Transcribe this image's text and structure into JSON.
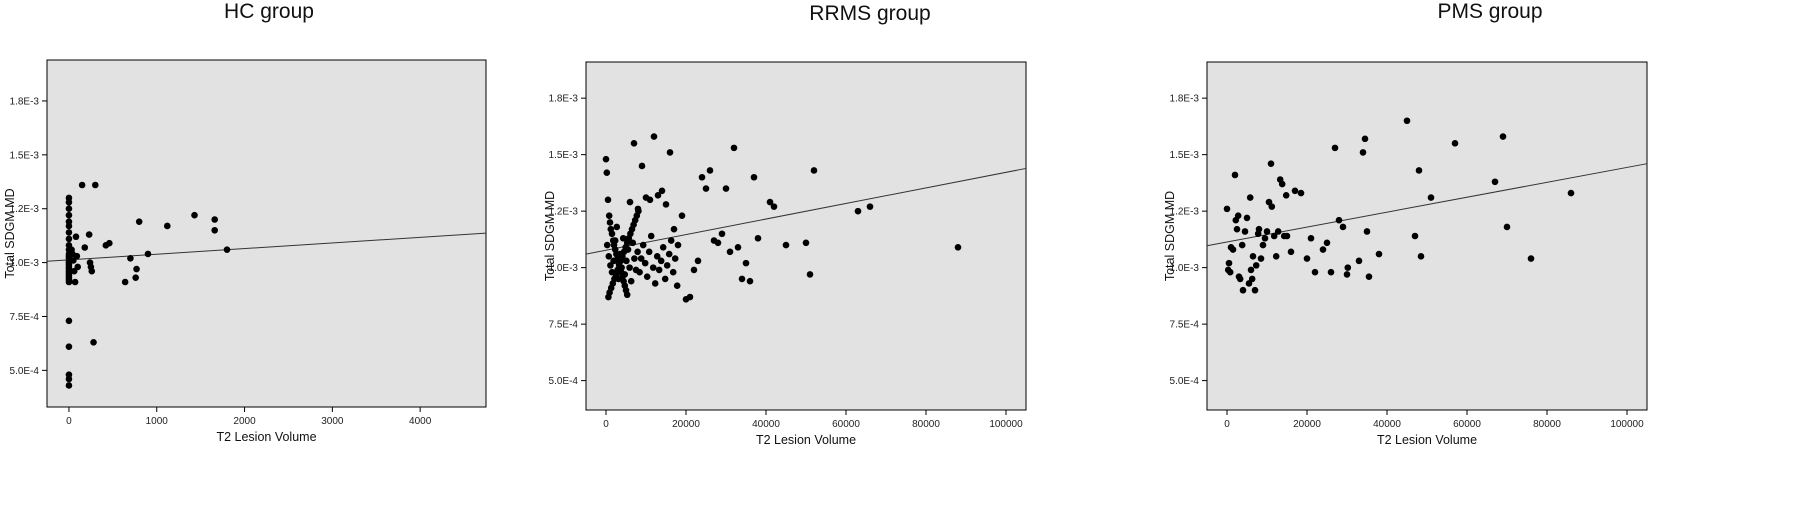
{
  "chart_data": [
    {
      "type": "scatter",
      "title": "HC group",
      "xlabel": "T2 Lesion Volume",
      "ylabel": "Total SDGM MD",
      "xlim": [
        -250,
        4750
      ],
      "ylim": [
        0.00033,
        0.00194
      ],
      "xticks": [
        0,
        1000,
        2000,
        3000,
        4000
      ],
      "xtick_labels": [
        "0",
        "1000",
        "2000",
        "3000",
        "4000"
      ],
      "yticks": [
        0.0005,
        0.00075,
        0.001,
        0.00125,
        0.0015,
        0.00175
      ],
      "ytick_labels": [
        "5.0E-4",
        "7.5E-4",
        "1.0E-3",
        "1.2E-3",
        "1.5E-3",
        "1.8E-3"
      ],
      "background": "#e2e2e2",
      "point_color": "#000000",
      "fit_line": {
        "x": [
          -250,
          4750
        ],
        "y": [
          0.001006,
          0.001137
        ]
      },
      "points": [
        [
          0,
          0.0013
        ],
        [
          0,
          0.00128
        ],
        [
          0,
          0.00125
        ],
        [
          0,
          0.00122
        ],
        [
          0,
          0.00119
        ],
        [
          0,
          0.00117
        ],
        [
          0,
          0.00114
        ],
        [
          0,
          0.00111
        ],
        [
          0,
          0.00108
        ],
        [
          0,
          0.00106
        ],
        [
          0,
          0.00104
        ],
        [
          0,
          0.00103
        ],
        [
          0,
          0.00102
        ],
        [
          0,
          0.00101
        ],
        [
          0,
          0.001
        ],
        [
          0,
          0.00099
        ],
        [
          0,
          0.00098
        ],
        [
          0,
          0.00097
        ],
        [
          0,
          0.00096
        ],
        [
          0,
          0.00095
        ],
        [
          0,
          0.00094
        ],
        [
          0,
          0.00093
        ],
        [
          0,
          0.00092
        ],
        [
          0,
          0.00091
        ],
        [
          0,
          0.00073
        ],
        [
          0,
          0.00061
        ],
        [
          0,
          0.00048
        ],
        [
          0,
          0.00046
        ],
        [
          0,
          0.00043
        ],
        [
          30,
          0.00106
        ],
        [
          40,
          0.00104
        ],
        [
          50,
          0.00101
        ],
        [
          60,
          0.00096
        ],
        [
          70,
          0.00091
        ],
        [
          80,
          0.00112
        ],
        [
          90,
          0.00103
        ],
        [
          100,
          0.00098
        ],
        [
          150,
          0.00136
        ],
        [
          180,
          0.00107
        ],
        [
          230,
          0.00113
        ],
        [
          240,
          0.001
        ],
        [
          250,
          0.00098
        ],
        [
          260,
          0.00096
        ],
        [
          280,
          0.00063
        ],
        [
          300,
          0.00136
        ],
        [
          420,
          0.00108
        ],
        [
          460,
          0.00109
        ],
        [
          640,
          0.00091
        ],
        [
          700,
          0.00102
        ],
        [
          760,
          0.00093
        ],
        [
          770,
          0.00097
        ],
        [
          800,
          0.00119
        ],
        [
          900,
          0.00104
        ],
        [
          1120,
          0.00117
        ],
        [
          1430,
          0.00122
        ],
        [
          1660,
          0.0012
        ],
        [
          1660,
          0.00115
        ],
        [
          1800,
          0.00106
        ]
      ]
    },
    {
      "type": "scatter",
      "title": "RRMS group",
      "xlabel": "T2 Lesion Volume",
      "ylabel": "Total SDGM MD",
      "xlim": [
        -5000,
        105000
      ],
      "ylim": [
        0.00037,
        0.00191
      ],
      "xticks": [
        0,
        20000,
        40000,
        60000,
        80000,
        100000
      ],
      "xtick_labels": [
        "0",
        "20000",
        "40000",
        "60000",
        "80000",
        "100000"
      ],
      "yticks": [
        0.0005,
        0.00075,
        0.001,
        0.00125,
        0.0015,
        0.00175
      ],
      "ytick_labels": [
        "5.0E-4",
        "7.5E-4",
        "1.0E-3",
        "1.2E-3",
        "1.5E-3",
        "1.8E-3"
      ],
      "background": "#e2e2e2",
      "point_color": "#000000",
      "fit_line": {
        "x": [
          -5000,
          105000
        ],
        "y": [
          0.00106,
          0.001439
        ]
      },
      "points": [
        [
          0,
          0.00148
        ],
        [
          200,
          0.00142
        ],
        [
          500,
          0.0013
        ],
        [
          800,
          0.00123
        ],
        [
          1000,
          0.0012
        ],
        [
          1200,
          0.00117
        ],
        [
          1500,
          0.00115
        ],
        [
          1800,
          0.00112
        ],
        [
          2000,
          0.0011
        ],
        [
          2300,
          0.00108
        ],
        [
          2600,
          0.00106
        ],
        [
          2900,
          0.00104
        ],
        [
          3200,
          0.00102
        ],
        [
          3500,
          0.001
        ],
        [
          3800,
          0.00098
        ],
        [
          4100,
          0.00096
        ],
        [
          4400,
          0.00094
        ],
        [
          4700,
          0.00092
        ],
        [
          5000,
          0.0009
        ],
        [
          5300,
          0.00088
        ],
        [
          600,
          0.00087
        ],
        [
          900,
          0.00089
        ],
        [
          1300,
          0.00091
        ],
        [
          1700,
          0.00093
        ],
        [
          2100,
          0.00095
        ],
        [
          2500,
          0.00097
        ],
        [
          2900,
          0.00099
        ],
        [
          3300,
          0.00101
        ],
        [
          3700,
          0.00103
        ],
        [
          4100,
          0.00105
        ],
        [
          4500,
          0.00107
        ],
        [
          4900,
          0.00109
        ],
        [
          5300,
          0.00111
        ],
        [
          5700,
          0.00113
        ],
        [
          6100,
          0.00115
        ],
        [
          6500,
          0.00117
        ],
        [
          6900,
          0.00119
        ],
        [
          7300,
          0.00121
        ],
        [
          7700,
          0.00123
        ],
        [
          8100,
          0.00125
        ],
        [
          300,
          0.0011
        ],
        [
          700,
          0.00105
        ],
        [
          1100,
          0.00101
        ],
        [
          1500,
          0.00098
        ],
        [
          1900,
          0.00103
        ],
        [
          2300,
          0.00112
        ],
        [
          2700,
          0.00118
        ],
        [
          3100,
          0.00095
        ],
        [
          3500,
          0.00106
        ],
        [
          3900,
          0.001
        ],
        [
          4300,
          0.00113
        ],
        [
          4700,
          0.00097
        ],
        [
          5100,
          0.00103
        ],
        [
          5500,
          0.00108
        ],
        [
          5900,
          0.001
        ],
        [
          6300,
          0.00094
        ],
        [
          6700,
          0.00111
        ],
        [
          7100,
          0.00104
        ],
        [
          7500,
          0.00099
        ],
        [
          7900,
          0.00107
        ],
        [
          8400,
          0.00098
        ],
        [
          8800,
          0.00104
        ],
        [
          9300,
          0.0011
        ],
        [
          9800,
          0.00102
        ],
        [
          10300,
          0.00096
        ],
        [
          10800,
          0.00107
        ],
        [
          11300,
          0.00114
        ],
        [
          11800,
          0.001
        ],
        [
          12300,
          0.00093
        ],
        [
          12800,
          0.00105
        ],
        [
          13300,
          0.00099
        ],
        [
          13800,
          0.00103
        ],
        [
          14300,
          0.00109
        ],
        [
          14800,
          0.00095
        ],
        [
          15300,
          0.00101
        ],
        [
          15800,
          0.00106
        ],
        [
          16300,
          0.00112
        ],
        [
          16800,
          0.00098
        ],
        [
          17300,
          0.00104
        ],
        [
          17800,
          0.00092
        ],
        [
          6000,
          0.00129
        ],
        [
          7000,
          0.00155
        ],
        [
          8000,
          0.00126
        ],
        [
          9000,
          0.00145
        ],
        [
          10000,
          0.00131
        ],
        [
          11000,
          0.0013
        ],
        [
          12000,
          0.00158
        ],
        [
          13000,
          0.00132
        ],
        [
          14000,
          0.00134
        ],
        [
          15000,
          0.00128
        ],
        [
          16000,
          0.00151
        ],
        [
          17000,
          0.00117
        ],
        [
          18000,
          0.0011
        ],
        [
          19000,
          0.00123
        ],
        [
          20000,
          0.00086
        ],
        [
          21000,
          0.00087
        ],
        [
          22000,
          0.00099
        ],
        [
          23000,
          0.00103
        ],
        [
          24000,
          0.0014
        ],
        [
          25000,
          0.00135
        ],
        [
          26000,
          0.00143
        ],
        [
          27000,
          0.00112
        ],
        [
          28000,
          0.00111
        ],
        [
          29000,
          0.00115
        ],
        [
          30000,
          0.00135
        ],
        [
          31000,
          0.00107
        ],
        [
          32000,
          0.00153
        ],
        [
          33000,
          0.00109
        ],
        [
          34000,
          0.00095
        ],
        [
          35000,
          0.00102
        ],
        [
          36000,
          0.00094
        ],
        [
          37000,
          0.0014
        ],
        [
          38000,
          0.00113
        ],
        [
          41000,
          0.00129
        ],
        [
          42000,
          0.00127
        ],
        [
          45000,
          0.0011
        ],
        [
          50000,
          0.00111
        ],
        [
          51000,
          0.00097
        ],
        [
          52000,
          0.00143
        ],
        [
          63000,
          0.00125
        ],
        [
          66000,
          0.00127
        ],
        [
          88000,
          0.00109
        ]
      ]
    },
    {
      "type": "scatter",
      "title": "PMS group",
      "xlabel": "T2 Lesion Volume",
      "ylabel": "Total SDGM MD",
      "xlim": [
        -5000,
        105000
      ],
      "ylim": [
        0.00037,
        0.00191
      ],
      "xticks": [
        0,
        20000,
        40000,
        60000,
        80000,
        100000
      ],
      "xtick_labels": [
        "0",
        "20000",
        "40000",
        "60000",
        "80000",
        "100000"
      ],
      "yticks": [
        0.0005,
        0.00075,
        0.001,
        0.00125,
        0.0015,
        0.00175
      ],
      "ytick_labels": [
        "5.0E-4",
        "7.5E-4",
        "1.0E-3",
        "1.2E-3",
        "1.5E-3",
        "1.8E-3"
      ],
      "background": "#e2e2e2",
      "point_color": "#000000",
      "fit_line": {
        "x": [
          -5000,
          105000
        ],
        "y": [
          0.001097,
          0.00146
        ]
      },
      "points": [
        [
          0,
          0.00126
        ],
        [
          300,
          0.00099
        ],
        [
          500,
          0.00102
        ],
        [
          800,
          0.00098
        ],
        [
          1000,
          0.00109
        ],
        [
          1500,
          0.00108
        ],
        [
          2000,
          0.00141
        ],
        [
          2200,
          0.00121
        ],
        [
          2500,
          0.00117
        ],
        [
          2800,
          0.00123
        ],
        [
          3000,
          0.00096
        ],
        [
          3300,
          0.00095
        ],
        [
          3800,
          0.0011
        ],
        [
          4000,
          0.0009
        ],
        [
          4500,
          0.00116
        ],
        [
          5000,
          0.00122
        ],
        [
          5500,
          0.00093
        ],
        [
          5800,
          0.00131
        ],
        [
          6000,
          0.00099
        ],
        [
          6300,
          0.00095
        ],
        [
          6500,
          0.00105
        ],
        [
          7000,
          0.0009
        ],
        [
          7300,
          0.00101
        ],
        [
          7800,
          0.00115
        ],
        [
          8000,
          0.00117
        ],
        [
          8500,
          0.00104
        ],
        [
          9000,
          0.0011
        ],
        [
          9500,
          0.00113
        ],
        [
          10000,
          0.00116
        ],
        [
          10500,
          0.00129
        ],
        [
          11000,
          0.00146
        ],
        [
          11200,
          0.00127
        ],
        [
          11800,
          0.00114
        ],
        [
          12300,
          0.00105
        ],
        [
          12800,
          0.00116
        ],
        [
          13300,
          0.00139
        ],
        [
          13800,
          0.00137
        ],
        [
          14300,
          0.00114
        ],
        [
          14800,
          0.00132
        ],
        [
          15000,
          0.00114
        ],
        [
          16000,
          0.00107
        ],
        [
          17000,
          0.00134
        ],
        [
          18500,
          0.00133
        ],
        [
          20000,
          0.00104
        ],
        [
          21000,
          0.00113
        ],
        [
          22000,
          0.00098
        ],
        [
          24000,
          0.00108
        ],
        [
          25000,
          0.00111
        ],
        [
          26000,
          0.00098
        ],
        [
          27000,
          0.00153
        ],
        [
          28000,
          0.00121
        ],
        [
          29000,
          0.00118
        ],
        [
          30000,
          0.00097
        ],
        [
          30200,
          0.001
        ],
        [
          33000,
          0.00103
        ],
        [
          34000,
          0.00151
        ],
        [
          34500,
          0.00157
        ],
        [
          35000,
          0.00116
        ],
        [
          35500,
          0.00096
        ],
        [
          38000,
          0.00106
        ],
        [
          45000,
          0.00165
        ],
        [
          47000,
          0.00114
        ],
        [
          48000,
          0.00143
        ],
        [
          48500,
          0.00105
        ],
        [
          51000,
          0.00131
        ],
        [
          57000,
          0.00155
        ],
        [
          67000,
          0.00138
        ],
        [
          69000,
          0.00158
        ],
        [
          70000,
          0.00118
        ],
        [
          76000,
          0.00104
        ],
        [
          86000,
          0.00133
        ]
      ]
    }
  ]
}
